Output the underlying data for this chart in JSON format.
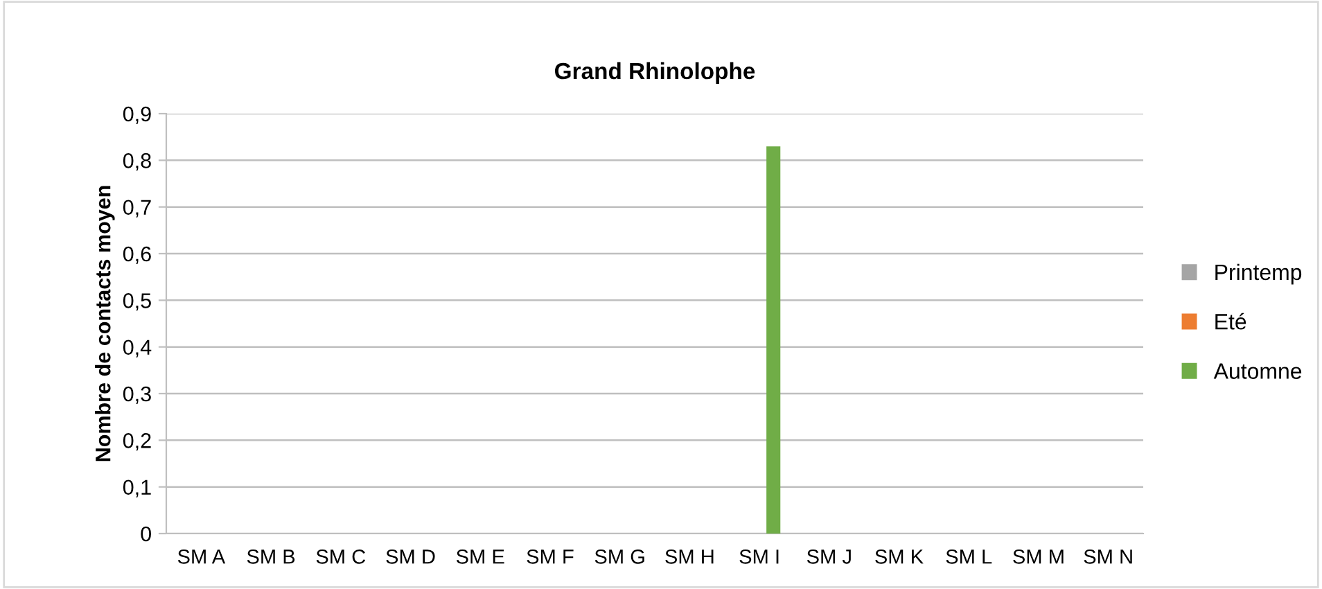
{
  "chart_data": {
    "type": "bar",
    "title": "Grand Rhinolophe",
    "ylabel": "Nombre de contacts moyen",
    "categories": [
      "SM A",
      "SM B",
      "SM C",
      "SM D",
      "SM E",
      "SM F",
      "SM G",
      "SM H",
      "SM I",
      "SM J",
      "SM K",
      "SM L",
      "SM M",
      "SM N"
    ],
    "series": [
      {
        "name": "Printemp",
        "color": "#a5a5a5",
        "values": [
          0,
          0,
          0,
          0,
          0,
          0,
          0,
          0,
          0,
          0,
          0,
          0,
          0,
          0
        ]
      },
      {
        "name": "Eté",
        "color": "#ed7d31",
        "values": [
          0,
          0,
          0,
          0,
          0,
          0,
          0,
          0,
          0,
          0,
          0,
          0,
          0,
          0
        ]
      },
      {
        "name": "Automne",
        "color": "#70ad47",
        "values": [
          0,
          0,
          0,
          0,
          0,
          0,
          0,
          0,
          0.83,
          0,
          0,
          0,
          0,
          0
        ]
      }
    ],
    "ylim": [
      0,
      0.9
    ],
    "yticks": [
      0,
      {
        "value": 0.1,
        "label": "0,1"
      },
      {
        "value": 0.2,
        "label": "0,2"
      },
      {
        "value": 0.3,
        "label": "0,3"
      },
      {
        "value": 0.4,
        "label": "0,4"
      },
      {
        "value": 0.5,
        "label": "0,5"
      },
      {
        "value": 0.6,
        "label": "0,6"
      },
      {
        "value": 0.7,
        "label": "0,7"
      },
      {
        "value": 0.8,
        "label": "0,8"
      },
      {
        "value": 0.9,
        "label": "0,9"
      }
    ],
    "grid": "y",
    "legend": "right"
  }
}
